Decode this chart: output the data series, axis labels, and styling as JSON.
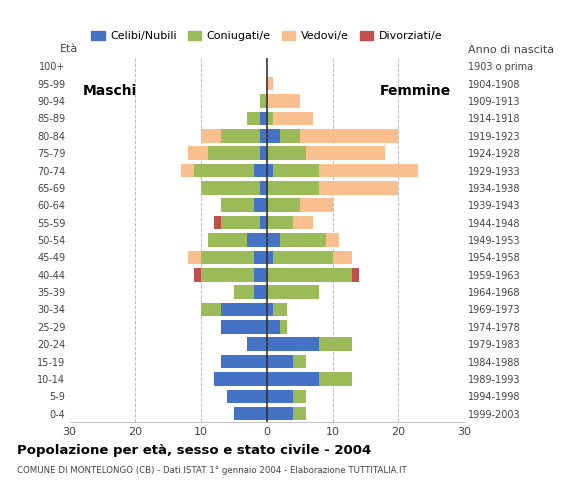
{
  "age_groups": [
    "0-4",
    "5-9",
    "10-14",
    "15-19",
    "20-24",
    "25-29",
    "30-34",
    "35-39",
    "40-44",
    "45-49",
    "50-54",
    "55-59",
    "60-64",
    "65-69",
    "70-74",
    "75-79",
    "80-84",
    "85-89",
    "90-94",
    "95-99",
    "100+"
  ],
  "birth_years": [
    "1999-2003",
    "1994-1998",
    "1989-1993",
    "1984-1988",
    "1979-1983",
    "1974-1978",
    "1969-1973",
    "1964-1968",
    "1959-1963",
    "1954-1958",
    "1949-1953",
    "1944-1948",
    "1939-1943",
    "1934-1938",
    "1929-1933",
    "1924-1928",
    "1919-1923",
    "1914-1918",
    "1909-1913",
    "1904-1908",
    "1903 o prima"
  ],
  "colors": {
    "celibe": "#4472C4",
    "coniugato": "#9BBB59",
    "vedovo": "#FABF8F",
    "divorziato": "#C0504D"
  },
  "maschi": {
    "celibe": [
      5,
      6,
      8,
      7,
      3,
      7,
      7,
      2,
      2,
      2,
      3,
      1,
      2,
      1,
      2,
      1,
      1,
      1,
      0,
      0,
      0
    ],
    "coniugato": [
      0,
      0,
      0,
      0,
      0,
      0,
      3,
      3,
      8,
      8,
      6,
      6,
      5,
      9,
      9,
      8,
      6,
      2,
      1,
      0,
      0
    ],
    "vedovo": [
      0,
      0,
      0,
      0,
      0,
      0,
      0,
      0,
      0,
      2,
      0,
      0,
      0,
      0,
      2,
      3,
      3,
      0,
      0,
      0,
      0
    ],
    "divorziato": [
      0,
      0,
      0,
      0,
      0,
      0,
      0,
      0,
      1,
      0,
      0,
      1,
      0,
      0,
      0,
      0,
      0,
      0,
      0,
      0,
      0
    ]
  },
  "femmine": {
    "celibe": [
      4,
      4,
      8,
      4,
      8,
      2,
      1,
      0,
      0,
      1,
      2,
      0,
      0,
      0,
      1,
      0,
      2,
      0,
      0,
      0,
      0
    ],
    "coniugato": [
      2,
      2,
      5,
      2,
      5,
      1,
      2,
      8,
      13,
      9,
      7,
      4,
      5,
      8,
      7,
      6,
      3,
      1,
      0,
      0,
      0
    ],
    "vedovo": [
      0,
      0,
      0,
      0,
      0,
      0,
      0,
      0,
      0,
      3,
      2,
      3,
      5,
      12,
      15,
      12,
      15,
      6,
      5,
      1,
      0
    ],
    "divorziato": [
      0,
      0,
      0,
      0,
      0,
      0,
      0,
      0,
      1,
      0,
      0,
      0,
      0,
      0,
      0,
      0,
      0,
      0,
      0,
      0,
      0
    ]
  },
  "title": "Popolazione per età, sesso e stato civile - 2004",
  "subtitle": "COMUNE DI MONTELONGO (CB) - Dati ISTAT 1° gennaio 2004 - Elaborazione TUTTITALIA.IT",
  "xlabel_left": "Maschi",
  "xlabel_right": "Femmine",
  "ylabel_left": "Età",
  "ylabel_right": "Anno di nascita",
  "xlim": 30,
  "legend_labels": [
    "Celibi/Nubili",
    "Coniugati/e",
    "Vedovi/e",
    "Divorziati/e"
  ],
  "bg_color": "#FFFFFF"
}
